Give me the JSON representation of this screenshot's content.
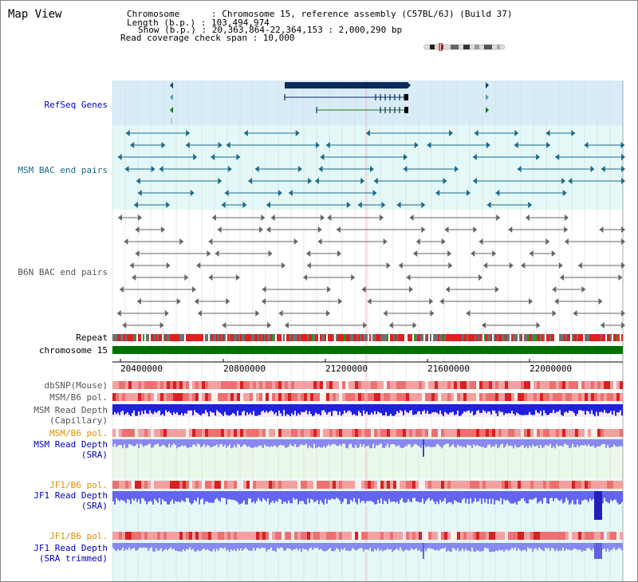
{
  "header": {
    "title": "Map View",
    "info_lines": [
      "Chromosome      : Chromosome 15, reference assembly (C57BL/6J) (Build 37)",
      "Length (b.p.) : 103,494,974",
      "Show (b.p.) : 20,363,864-22,364,153 : 2,000,290 bp",
      "Read coverage check span : 10,000"
    ]
  },
  "tracks": {
    "refseq": "RefSeq Genes",
    "msm_bac": "MSM BAC end pairs",
    "b6n_bac": "B6N BAC end pairs",
    "repeat": "Repeat",
    "chromosome": "chromosome 15",
    "dbsnp": "dbSNP(Mouse)",
    "msm_b6_pol": "MSM/B6 pol.",
    "msm_read_depth_cap": "MSM Read Depth\n(Capillary)",
    "msm_b6_pol2": "MSM/B6 pol.",
    "msm_read_depth_sra": "MSM Read Depth\n(SRA)",
    "jf1_b6_pol": "JF1/B6 pol.",
    "jf1_read_depth_sra": "JF1 Read Depth\n(SRA)",
    "jf1_b6_pol2": "JF1/B6 pol.",
    "jf1_read_depth_trim": "JF1 Read Depth\n(SRA trimmed)"
  },
  "axis": {
    "ticks": [
      "20400000",
      "20800000",
      "21200000",
      "21600000",
      "22000000"
    ]
  },
  "colors": {
    "refseq_bg": "#d8ecf8",
    "msm_bg": "#e4f8f8",
    "sra_bg": "#eaf8ea",
    "jf1_bg": "#e4f8f8",
    "chromosome_bar": "#007000",
    "dark_blue": "#0a2a5a",
    "depth_blue": "#2020e0",
    "depth_light": "#8080f0",
    "snp_red": "#ee5a5a"
  }
}
